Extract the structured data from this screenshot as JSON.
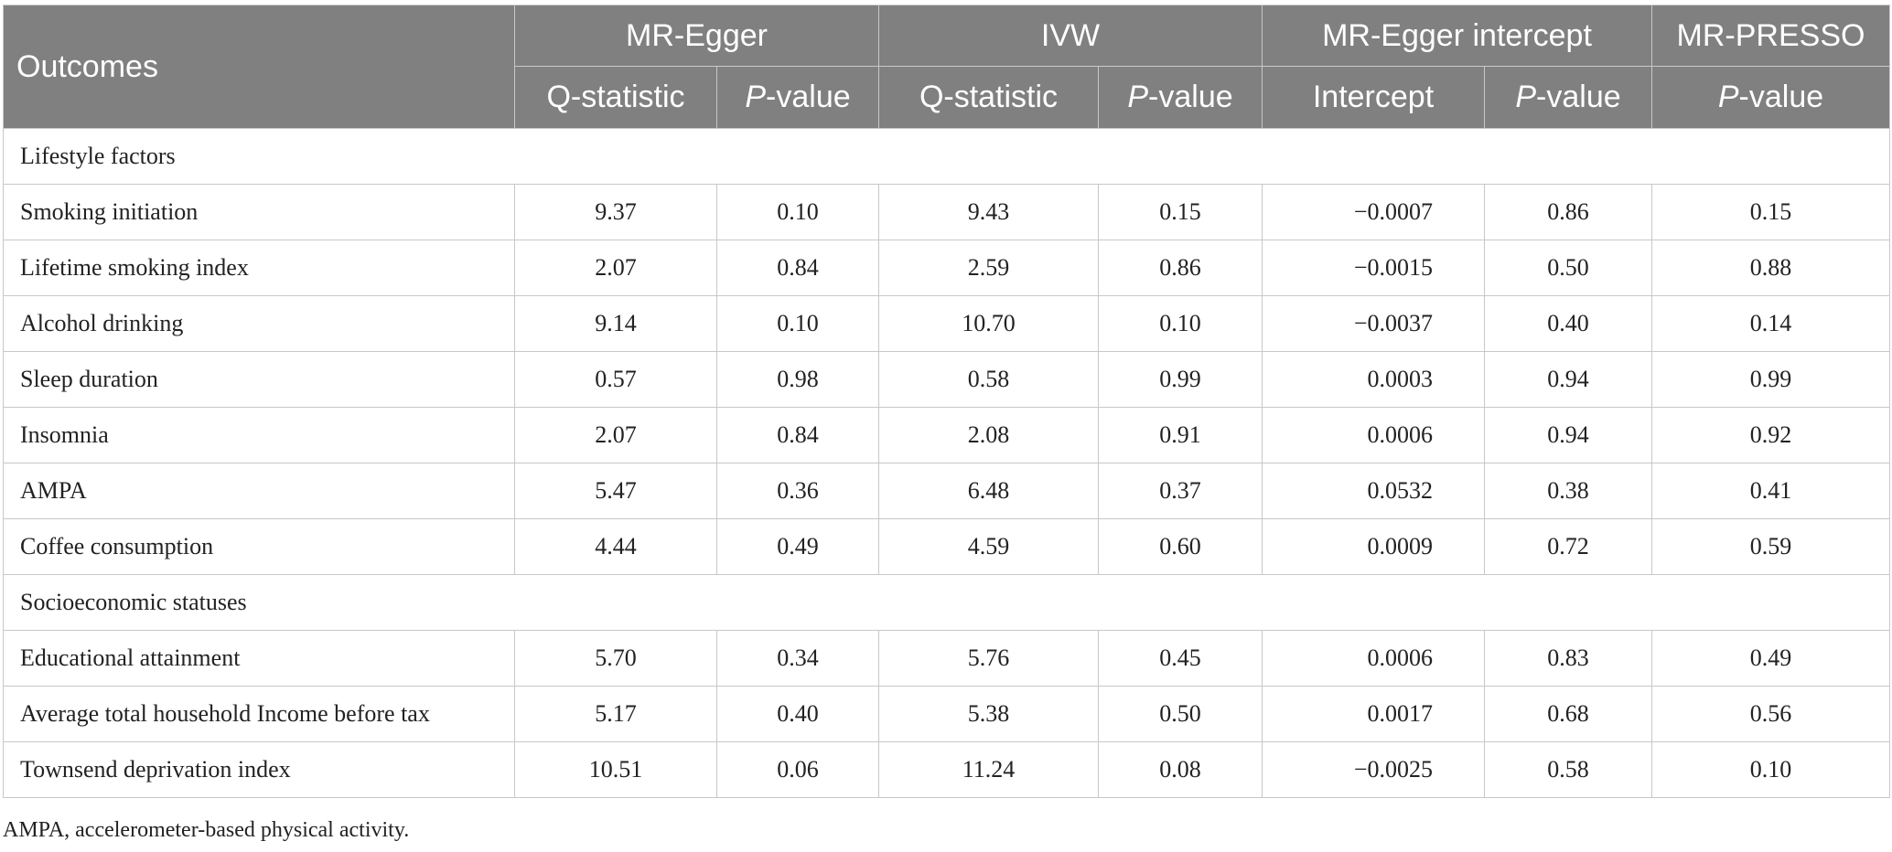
{
  "header": {
    "outcomes": "Outcomes",
    "groups": [
      "MR-Egger",
      "IVW",
      "MR-Egger intercept",
      "MR-PRESSO"
    ],
    "sub": {
      "q_stat": "Q-statistic",
      "p_italic": "P",
      "p_rest": "-value",
      "intercept": "Intercept"
    }
  },
  "sections": [
    {
      "title": "Lifestyle factors",
      "rows": [
        {
          "outcome": "Smoking initiation",
          "eq": "9.37",
          "ep": "0.10",
          "iq": "9.43",
          "ip": "0.15",
          "int": "−0.0007",
          "intp": "0.86",
          "presso": "0.15"
        },
        {
          "outcome": "Lifetime smoking index",
          "eq": "2.07",
          "ep": "0.84",
          "iq": "2.59",
          "ip": "0.86",
          "int": "−0.0015",
          "intp": "0.50",
          "presso": "0.88"
        },
        {
          "outcome": "Alcohol drinking",
          "eq": "9.14",
          "ep": "0.10",
          "iq": "10.70",
          "ip": "0.10",
          "int": "−0.0037",
          "intp": "0.40",
          "presso": "0.14"
        },
        {
          "outcome": "Sleep duration",
          "eq": "0.57",
          "ep": "0.98",
          "iq": "0.58",
          "ip": "0.99",
          "int": "0.0003",
          "intp": "0.94",
          "presso": "0.99"
        },
        {
          "outcome": "Insomnia",
          "eq": "2.07",
          "ep": "0.84",
          "iq": "2.08",
          "ip": "0.91",
          "int": "0.0006",
          "intp": "0.94",
          "presso": "0.92"
        },
        {
          "outcome": "AMPA",
          "eq": "5.47",
          "ep": "0.36",
          "iq": "6.48",
          "ip": "0.37",
          "int": "0.0532",
          "intp": "0.38",
          "presso": "0.41"
        },
        {
          "outcome": "Coffee consumption",
          "eq": "4.44",
          "ep": "0.49",
          "iq": "4.59",
          "ip": "0.60",
          "int": "0.0009",
          "intp": "0.72",
          "presso": "0.59"
        }
      ]
    },
    {
      "title": "Socioeconomic statuses",
      "rows": [
        {
          "outcome": "Educational attainment",
          "eq": "5.70",
          "ep": "0.34",
          "iq": "5.76",
          "ip": "0.45",
          "int": "0.0006",
          "intp": "0.83",
          "presso": "0.49"
        },
        {
          "outcome": "Average total household Income before tax",
          "eq": "5.17",
          "ep": "0.40",
          "iq": "5.38",
          "ip": "0.50",
          "int": "0.0017",
          "intp": "0.68",
          "presso": "0.56"
        },
        {
          "outcome": "Townsend deprivation index",
          "eq": "10.51",
          "ep": "0.06",
          "iq": "11.24",
          "ip": "0.08",
          "int": "−0.0025",
          "intp": "0.58",
          "presso": "0.10"
        }
      ]
    }
  ],
  "footnote": "AMPA, accelerometer-based physical activity."
}
